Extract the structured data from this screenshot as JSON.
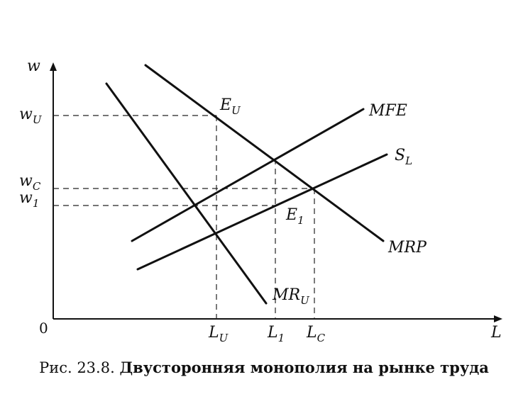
{
  "axes": {
    "y_label": "w",
    "x_label": "L",
    "origin": "0"
  },
  "y_ticks": {
    "wU": {
      "main": "w",
      "sub": "U"
    },
    "wC": {
      "main": "w",
      "sub": "C"
    },
    "w1": {
      "main": "w",
      "sub": "1"
    }
  },
  "x_ticks": {
    "LU": {
      "main": "L",
      "sub": "U"
    },
    "L1": {
      "main": "L",
      "sub": "1"
    },
    "LC": {
      "main": "L",
      "sub": "C"
    }
  },
  "curves": {
    "mfe": "MFE",
    "sl": {
      "main": "S",
      "sub": "L"
    },
    "mrp": "MRP",
    "mru": {
      "main": "MR",
      "sub": "U"
    }
  },
  "points": {
    "eu": {
      "main": "E",
      "sub": "U"
    },
    "e1": {
      "main": "E",
      "sub": "1"
    }
  },
  "caption": {
    "prefix": "Рис. 23.8.",
    "title": "Двусторонняя монополия на рынке труда"
  }
}
